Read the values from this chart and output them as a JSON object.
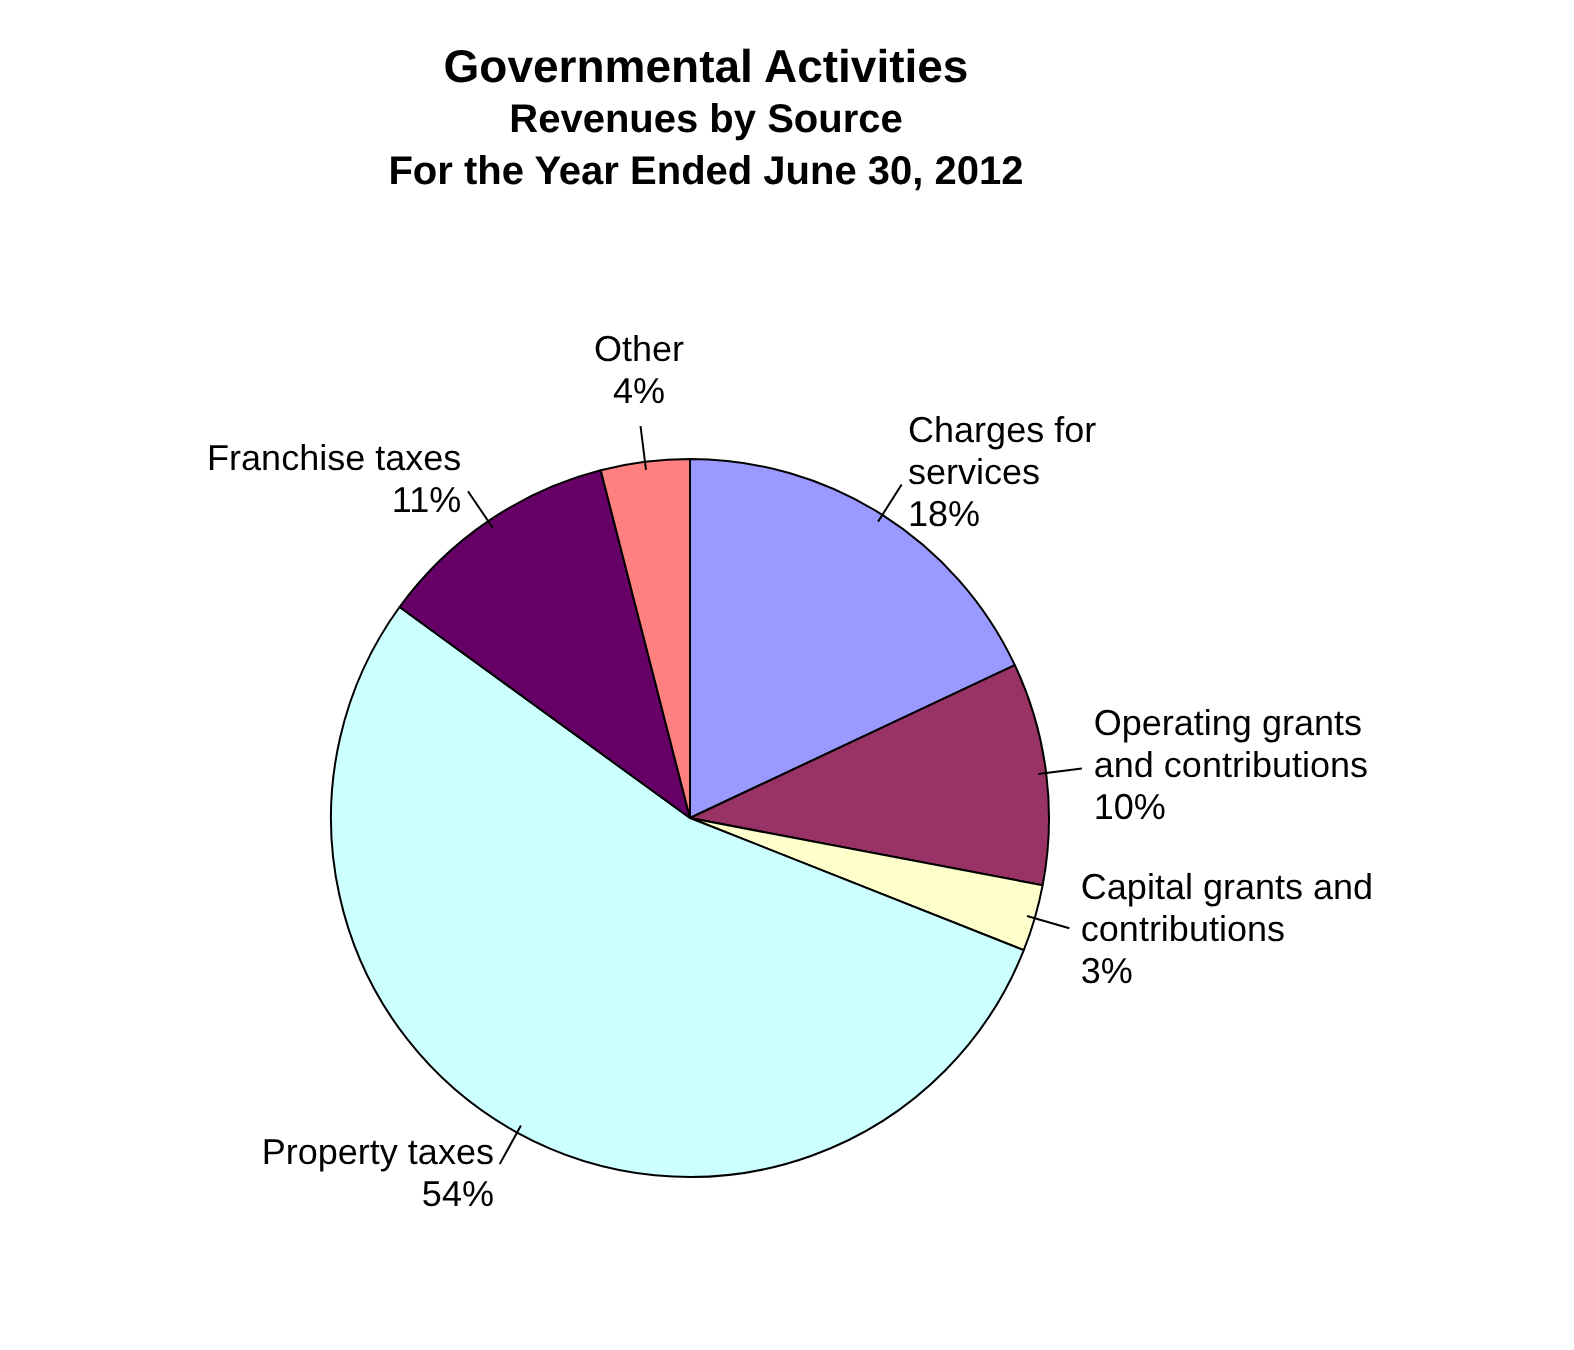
{
  "chart_data": {
    "type": "pie",
    "title": "Governmental Activities",
    "subtitle": "Revenues by Source\nFor the Year Ended June 30, 2012",
    "categories": [
      "Charges for services",
      "Operating grants and contributions",
      "Capital grants and contributions",
      "Property taxes",
      "Franchise taxes",
      "Other"
    ],
    "values": [
      18,
      10,
      3,
      54,
      11,
      4
    ],
    "value_labels": [
      "18%",
      "10%",
      "3%",
      "54%",
      "11%",
      "4%"
    ],
    "colors": [
      "#9999ff",
      "#993366",
      "#ffffcc",
      "#ccffff",
      "#660066",
      "#ff8080"
    ],
    "legend": false
  }
}
